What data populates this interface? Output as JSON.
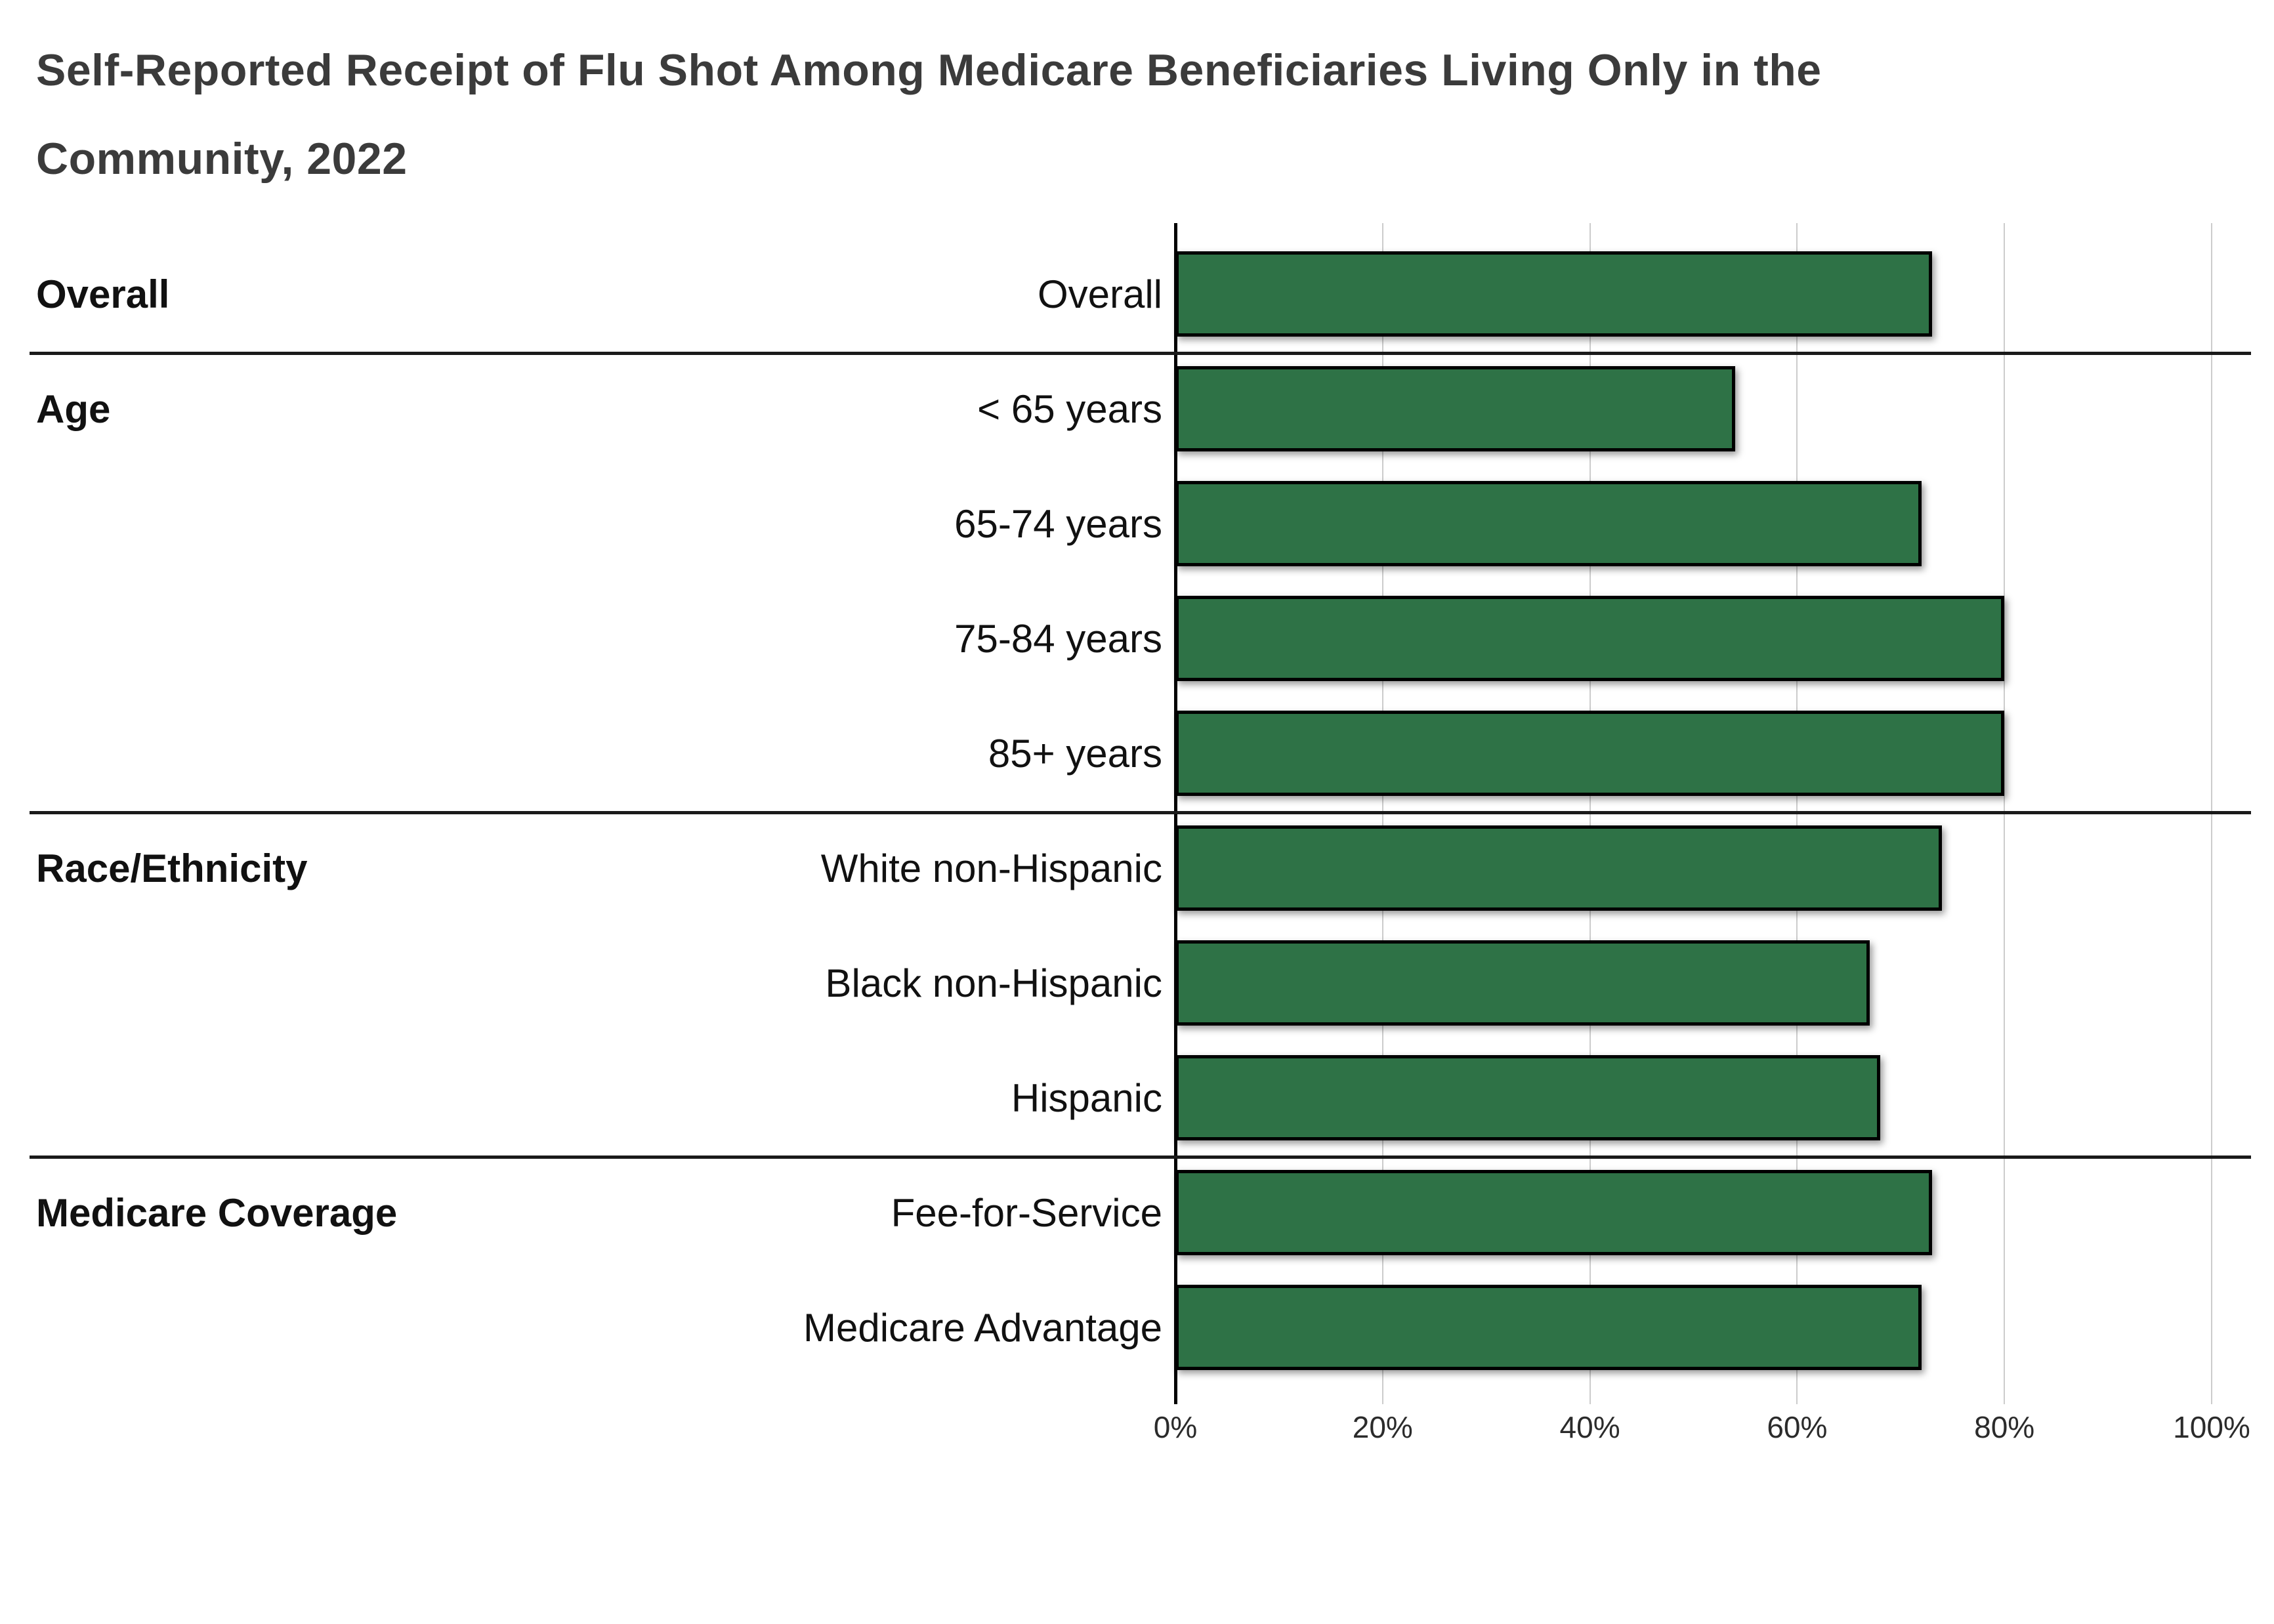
{
  "title": {
    "line1": "Self-Reported Receipt of Flu Shot Among Medicare Beneficiaries Living Only in the",
    "line2": "Community, 2022"
  },
  "colors": {
    "bar": "#2E7246",
    "bar_border": "#000000",
    "gridline": "#cccccc",
    "axis_line": "#000000",
    "separator": "#1a1a1a",
    "title_text": "#3b3b3b",
    "label_text": "#111111",
    "tick_text": "#2b2b2b"
  },
  "chart_data": {
    "type": "bar",
    "orientation": "horizontal",
    "title": "Self-Reported Receipt of Flu Shot Among Medicare Beneficiaries Living Only in the Community, 2022",
    "xlabel": "",
    "ylabel": "",
    "value_unit": "percent",
    "xlim": [
      0,
      100
    ],
    "grid": true,
    "legend": false,
    "x_ticks": [
      {
        "value": 0,
        "label": "0%"
      },
      {
        "value": 20,
        "label": "20%"
      },
      {
        "value": 40,
        "label": "40%"
      },
      {
        "value": 60,
        "label": "60%"
      },
      {
        "value": 80,
        "label": "80%"
      },
      {
        "value": 100,
        "label": "100%"
      }
    ],
    "groups": [
      {
        "group": "Overall",
        "rows": [
          {
            "label": "Overall",
            "value": 73
          }
        ]
      },
      {
        "group": "Age",
        "rows": [
          {
            "label": "< 65 years",
            "value": 54
          },
          {
            "label": "65-74 years",
            "value": 72
          },
          {
            "label": "75-84 years",
            "value": 80
          },
          {
            "label": "85+ years",
            "value": 80
          }
        ]
      },
      {
        "group": "Race/Ethnicity",
        "rows": [
          {
            "label": "White non-Hispanic",
            "value": 74
          },
          {
            "label": "Black non-Hispanic",
            "value": 67
          },
          {
            "label": "Hispanic",
            "value": 68
          }
        ]
      },
      {
        "group": "Medicare Coverage",
        "rows": [
          {
            "label": "Fee-for-Service",
            "value": 73
          },
          {
            "label": "Medicare Advantage",
            "value": 72
          }
        ]
      }
    ]
  }
}
